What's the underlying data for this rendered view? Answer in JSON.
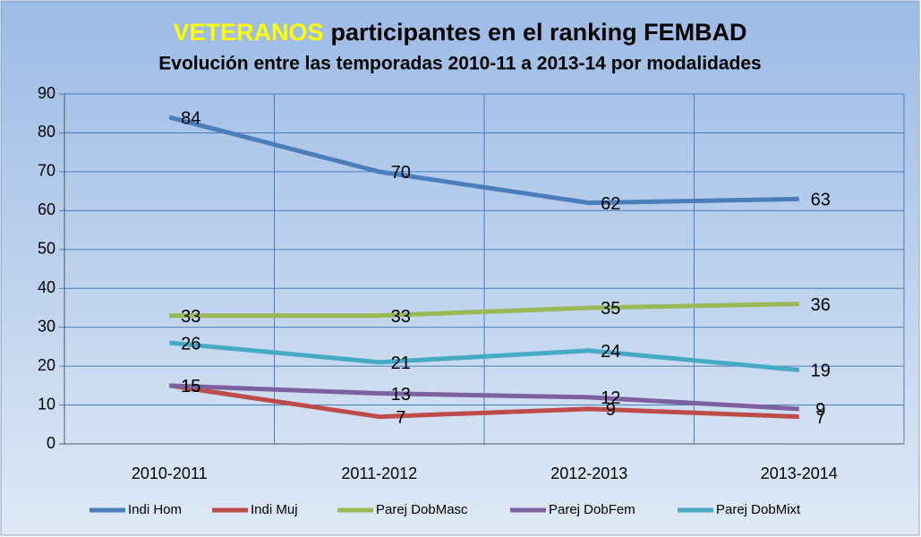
{
  "chart_data": {
    "type": "line",
    "title_highlight": "VETERANOS",
    "title": "participantes en el ranking FEMBAD",
    "subtitle": "Evolución entre las temporadas 2010-11 a 2013-14 por modalidades",
    "categories": [
      "2010-2011",
      "2011-2012",
      "2012-2013",
      "2013-2014"
    ],
    "series": [
      {
        "name": "Indi Hom",
        "color": "#4a7ebb",
        "values": [
          84,
          70,
          62,
          63
        ]
      },
      {
        "name": "Indi Muj",
        "color": "#be4b48",
        "values": [
          15,
          7,
          9,
          7
        ]
      },
      {
        "name": "Parej DobMasc",
        "color": "#98b954",
        "values": [
          33,
          33,
          35,
          36
        ]
      },
      {
        "name": "Parej DobFem",
        "color": "#7d60a0",
        "values": [
          15,
          13,
          12,
          9
        ]
      },
      {
        "name": "Parej DobMixt",
        "color": "#46aac5",
        "values": [
          26,
          21,
          24,
          19
        ]
      }
    ],
    "ylim": [
      0,
      90
    ],
    "yticks": [
      0,
      10,
      20,
      30,
      40,
      50,
      60,
      70,
      80,
      90
    ],
    "grid": true,
    "legend": "bottom"
  }
}
